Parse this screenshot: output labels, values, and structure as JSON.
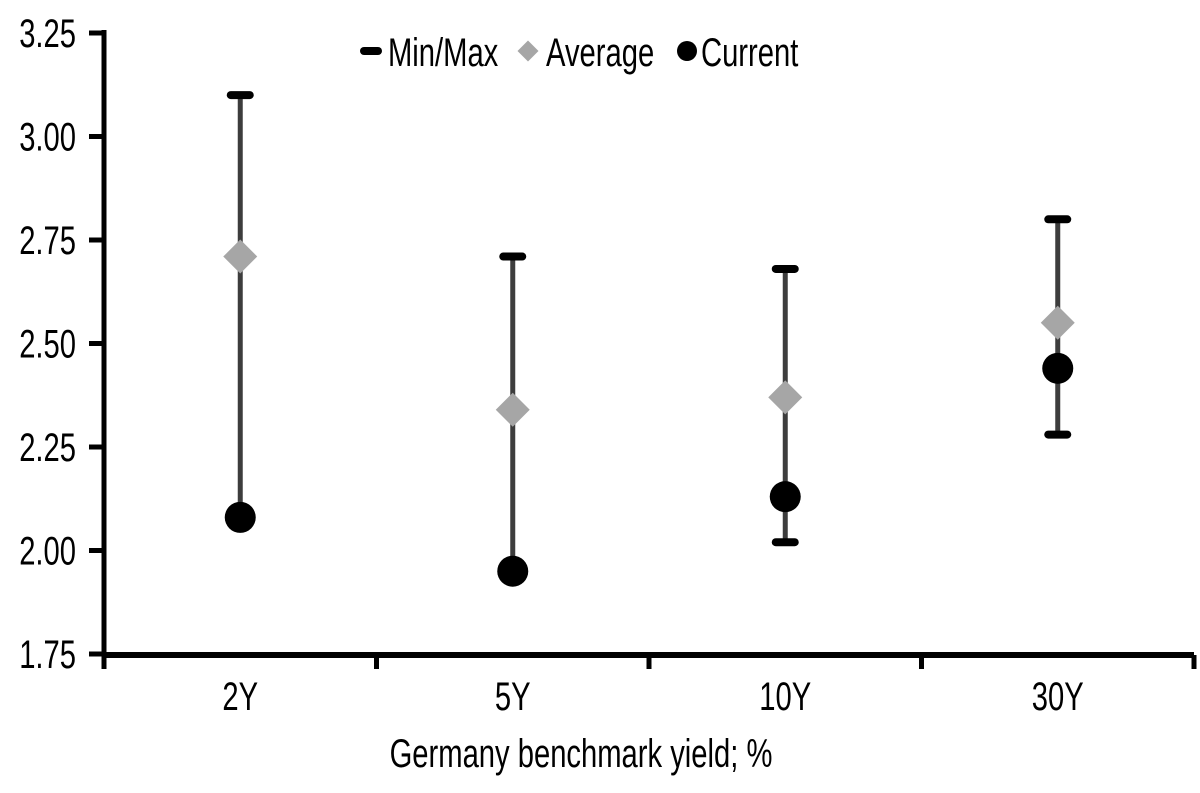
{
  "chart_data": {
    "type": "range-dot",
    "title": "",
    "xlabel": "Germany benchmark yield; %",
    "ylabel": "",
    "categories": [
      "2Y",
      "5Y",
      "10Y",
      "30Y"
    ],
    "y_axis": {
      "min": 1.75,
      "max": 3.25,
      "step": 0.25,
      "tick_labels": [
        "1.75",
        "2.00",
        "2.25",
        "2.50",
        "2.75",
        "3.00",
        "3.25"
      ]
    },
    "series": [
      {
        "name": "Min/Max",
        "marker": "dash",
        "color": "#000000",
        "min": [
          2.08,
          1.95,
          2.02,
          2.28
        ],
        "max": [
          3.1,
          2.71,
          2.68,
          2.8
        ]
      },
      {
        "name": "Average",
        "marker": "diamond",
        "color": "#a6a6a6",
        "values": [
          2.71,
          2.34,
          2.37,
          2.55
        ]
      },
      {
        "name": "Current",
        "marker": "circle",
        "color": "#000000",
        "values": [
          2.08,
          1.95,
          2.13,
          2.44
        ]
      }
    ],
    "legend": {
      "position": "top",
      "entries": [
        "Min/Max",
        "Average",
        "Current"
      ]
    },
    "grid": false,
    "colors": {
      "whisker": "#3d3d3d",
      "axis": "#000000",
      "text": "#000000",
      "background": "#ffffff"
    }
  }
}
